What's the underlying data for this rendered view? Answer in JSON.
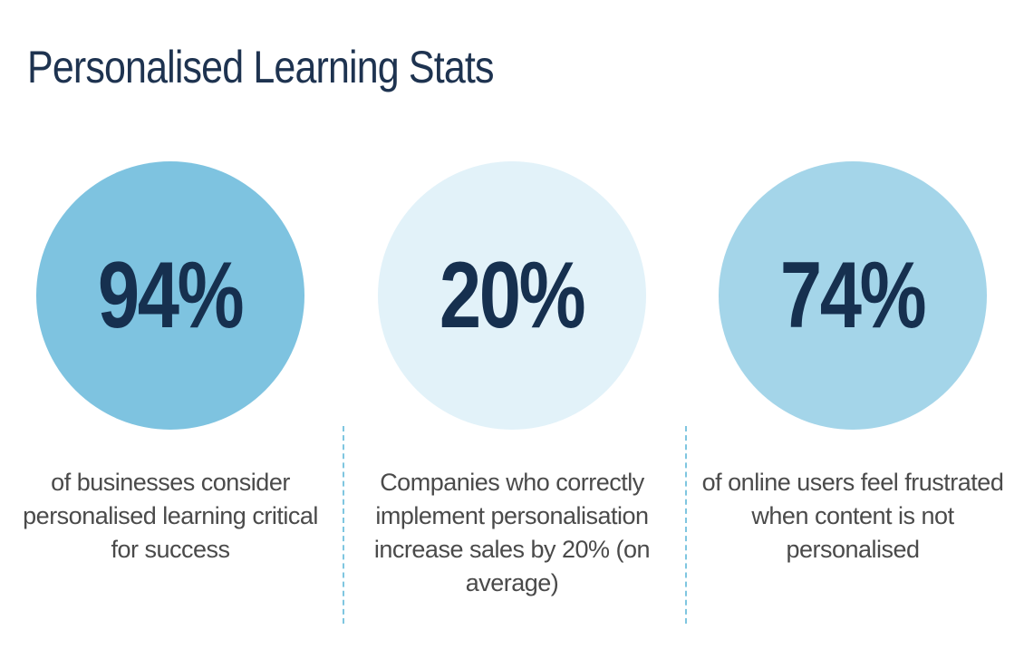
{
  "page": {
    "title": "Personalised Learning Stats"
  },
  "stats": [
    {
      "value": "94%",
      "caption": "of businesses consider personalised learning critical for success",
      "circle_color": "#7ec3e0"
    },
    {
      "value": "20%",
      "caption": "Companies who correctly implement personalisation increase sales by 20% (on average)",
      "circle_color": "#e2f2f9"
    },
    {
      "value": "74%",
      "caption": "of online users feel frustrated when content is not personalised",
      "circle_color": "#a4d5e9"
    }
  ],
  "colors": {
    "title": "#1e3350",
    "stat_text": "#16304f",
    "caption_text": "#4a4a4a",
    "divider": "#7fc6e0"
  }
}
